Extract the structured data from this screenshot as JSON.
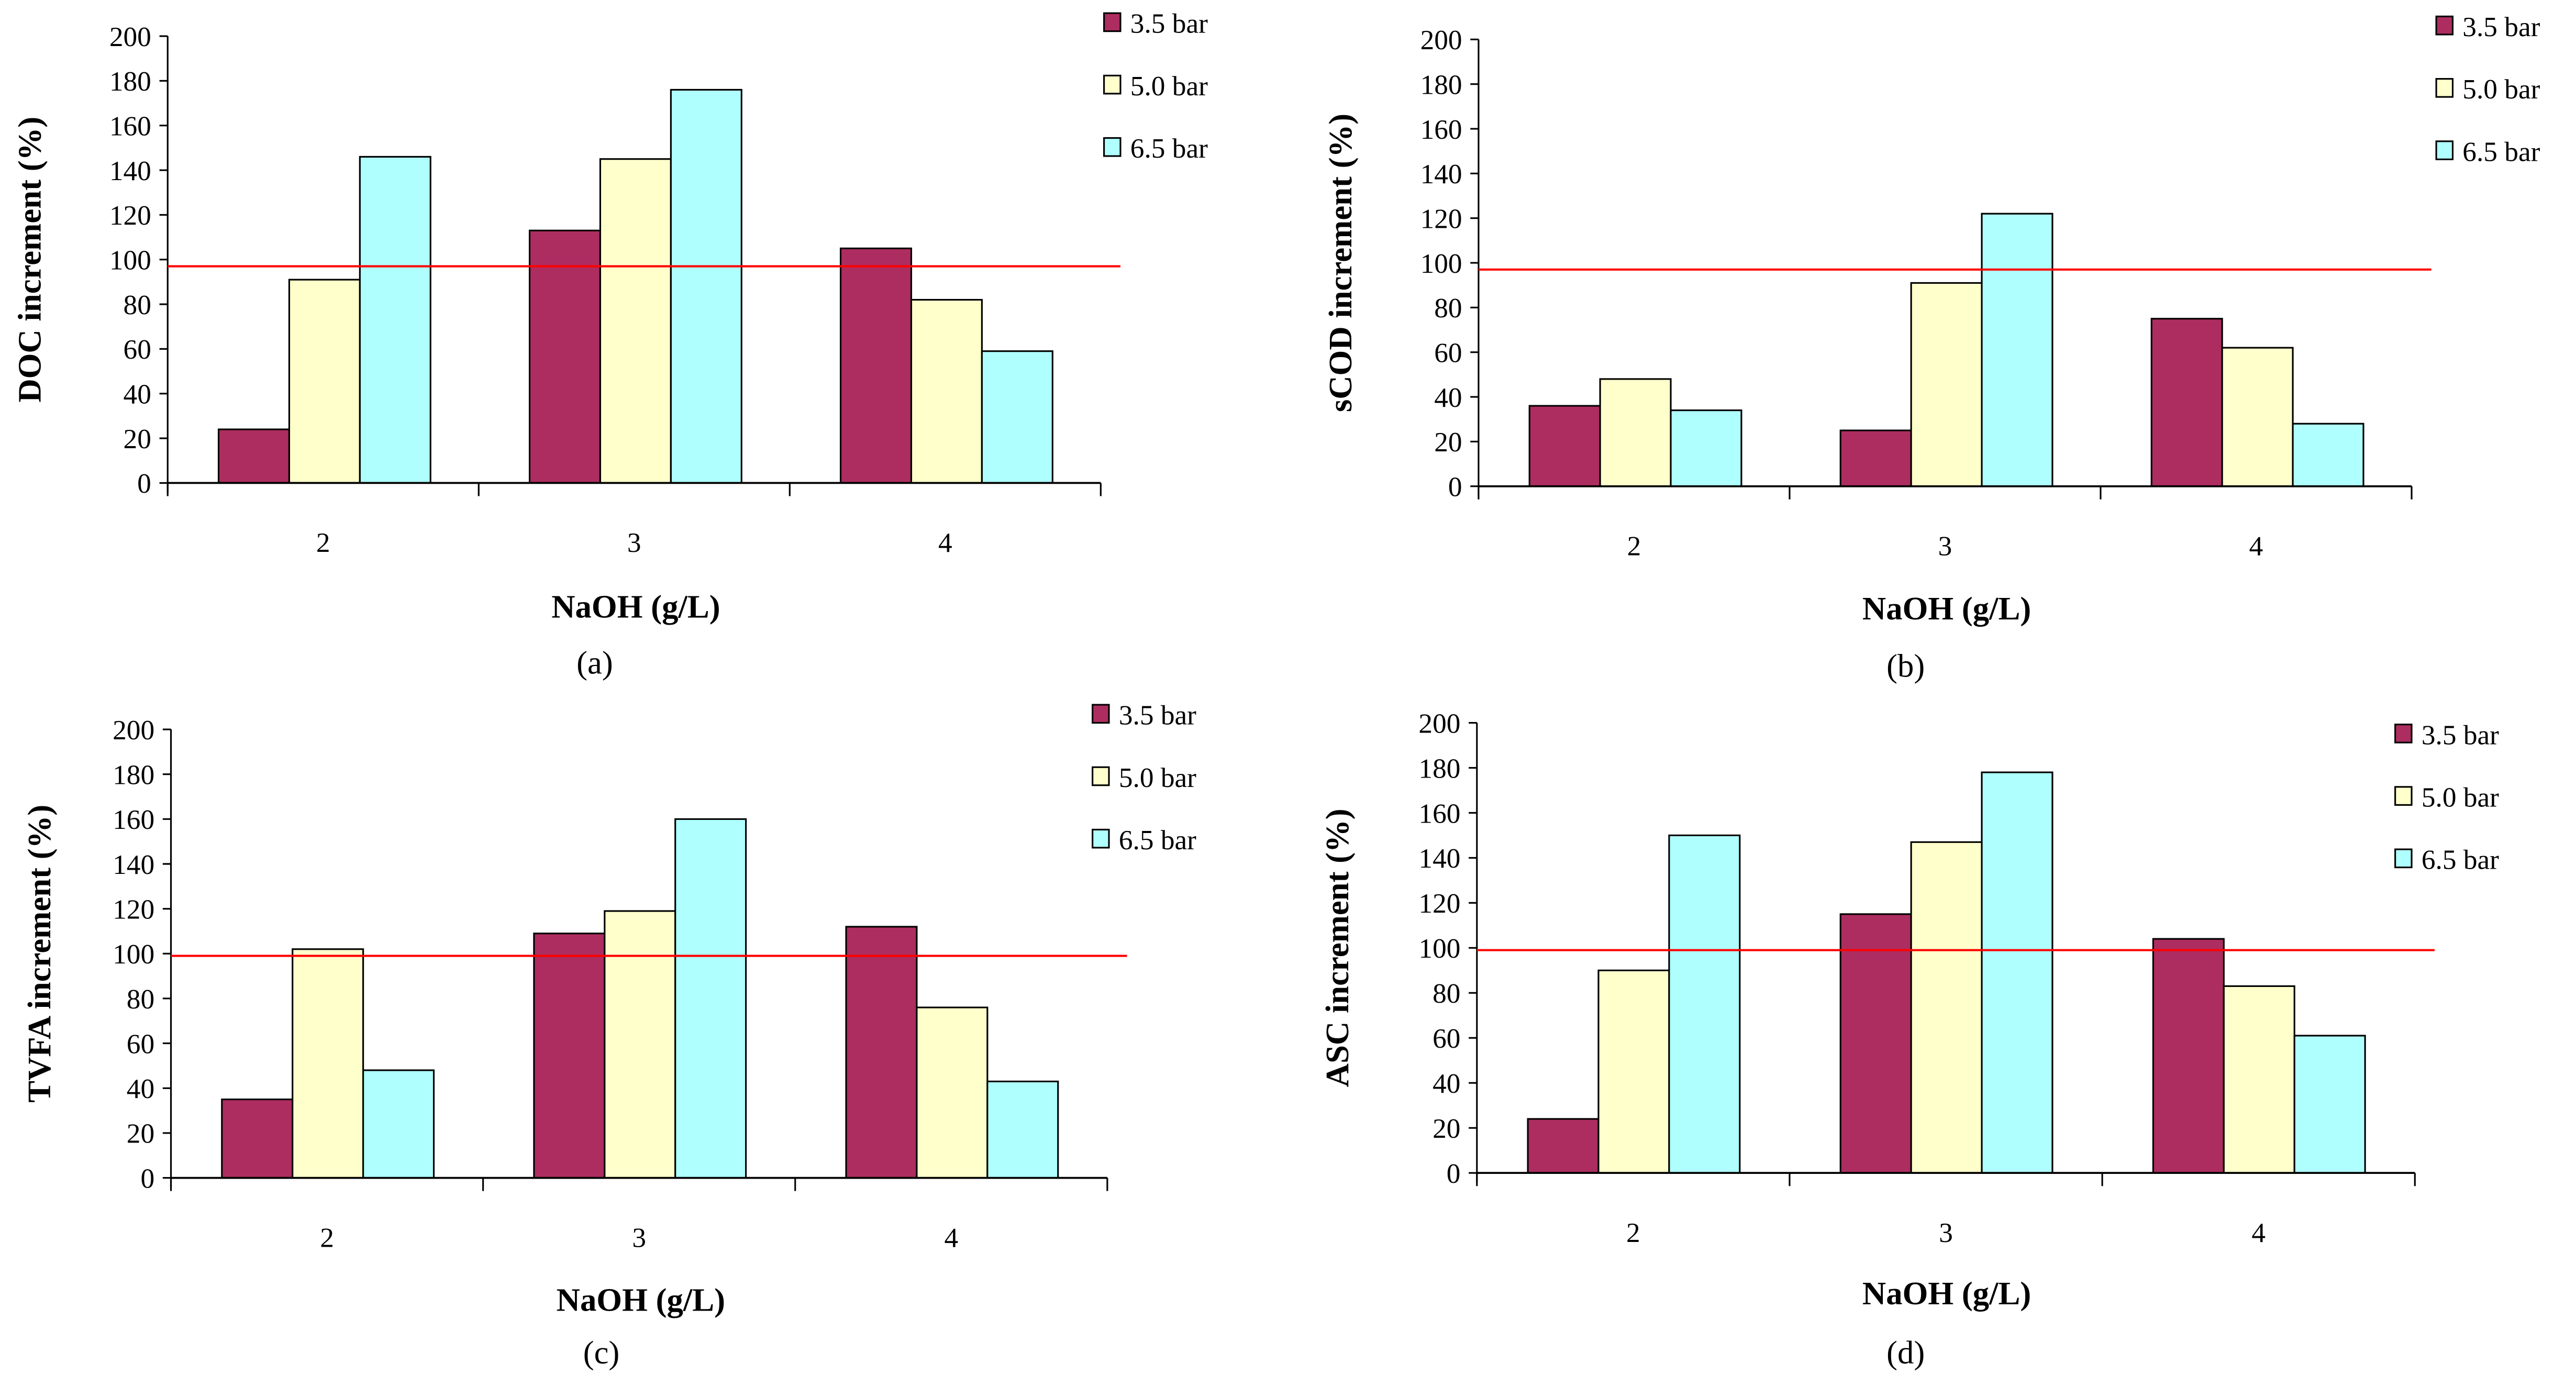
{
  "colors": {
    "s35": "#ad2d60",
    "s50": "#ffffcc",
    "s65": "#b0ffff",
    "ref": "#ff0000",
    "axis": "#000000"
  },
  "chart_data": [
    {
      "type": "bar",
      "caption": "(a)",
      "xlabel": "NaOH (g/L)",
      "ylabel": "DOC increment  (%)",
      "categories": [
        "2",
        "3",
        "4"
      ],
      "yticks": [
        "0",
        "20",
        "40",
        "60",
        "80",
        "100",
        "120",
        "140",
        "160",
        "180",
        "200"
      ],
      "ylim": [
        0,
        200
      ],
      "reference_line": 97,
      "legend": "top-right",
      "series": [
        {
          "name": "3.5 bar",
          "values": [
            24,
            113,
            105
          ]
        },
        {
          "name": "5.0 bar",
          "values": [
            91,
            145,
            82
          ]
        },
        {
          "name": "6.5 bar",
          "values": [
            146,
            176,
            59
          ]
        }
      ]
    },
    {
      "type": "bar",
      "caption": "(b)",
      "xlabel": "NaOH (g/L)",
      "ylabel": "sCOD increment  (%)",
      "categories": [
        "2",
        "3",
        "4"
      ],
      "yticks": [
        "0",
        "20",
        "40",
        "60",
        "80",
        "100",
        "120",
        "140",
        "160",
        "180",
        "200"
      ],
      "ylim": [
        0,
        200
      ],
      "reference_line": 97,
      "legend": "top-right",
      "series": [
        {
          "name": "3.5 bar",
          "values": [
            36,
            25,
            75
          ]
        },
        {
          "name": "5.0 bar",
          "values": [
            48,
            91,
            62
          ]
        },
        {
          "name": "6.5 bar",
          "values": [
            34,
            122,
            28
          ]
        }
      ]
    },
    {
      "type": "bar",
      "caption": "(c)",
      "xlabel": "NaOH (g/L)",
      "ylabel": "TVFA increment (%)",
      "categories": [
        "2",
        "3",
        "4"
      ],
      "yticks": [
        "0",
        "20",
        "40",
        "60",
        "80",
        "100",
        "120",
        "140",
        "160",
        "180",
        "200"
      ],
      "ylim": [
        0,
        200
      ],
      "reference_line": 99,
      "legend": "top-right",
      "series": [
        {
          "name": "3.5 bar",
          "values": [
            35,
            109,
            112
          ]
        },
        {
          "name": "5.0 bar",
          "values": [
            102,
            119,
            76
          ]
        },
        {
          "name": "6.5 bar",
          "values": [
            48,
            160,
            43
          ]
        }
      ]
    },
    {
      "type": "bar",
      "caption": "(d)",
      "xlabel": "NaOH (g/L)",
      "ylabel": "ASC increment (%)",
      "categories": [
        "2",
        "3",
        "4"
      ],
      "yticks": [
        "0",
        "20",
        "40",
        "60",
        "80",
        "100",
        "120",
        "140",
        "160",
        "180",
        "200"
      ],
      "ylim": [
        0,
        200
      ],
      "reference_line": 99,
      "legend": "top-right",
      "series": [
        {
          "name": "3.5 bar",
          "values": [
            24,
            115,
            104
          ]
        },
        {
          "name": "5.0 bar",
          "values": [
            90,
            147,
            83
          ]
        },
        {
          "name": "6.5 bar",
          "values": [
            150,
            178,
            61
          ]
        }
      ]
    }
  ]
}
